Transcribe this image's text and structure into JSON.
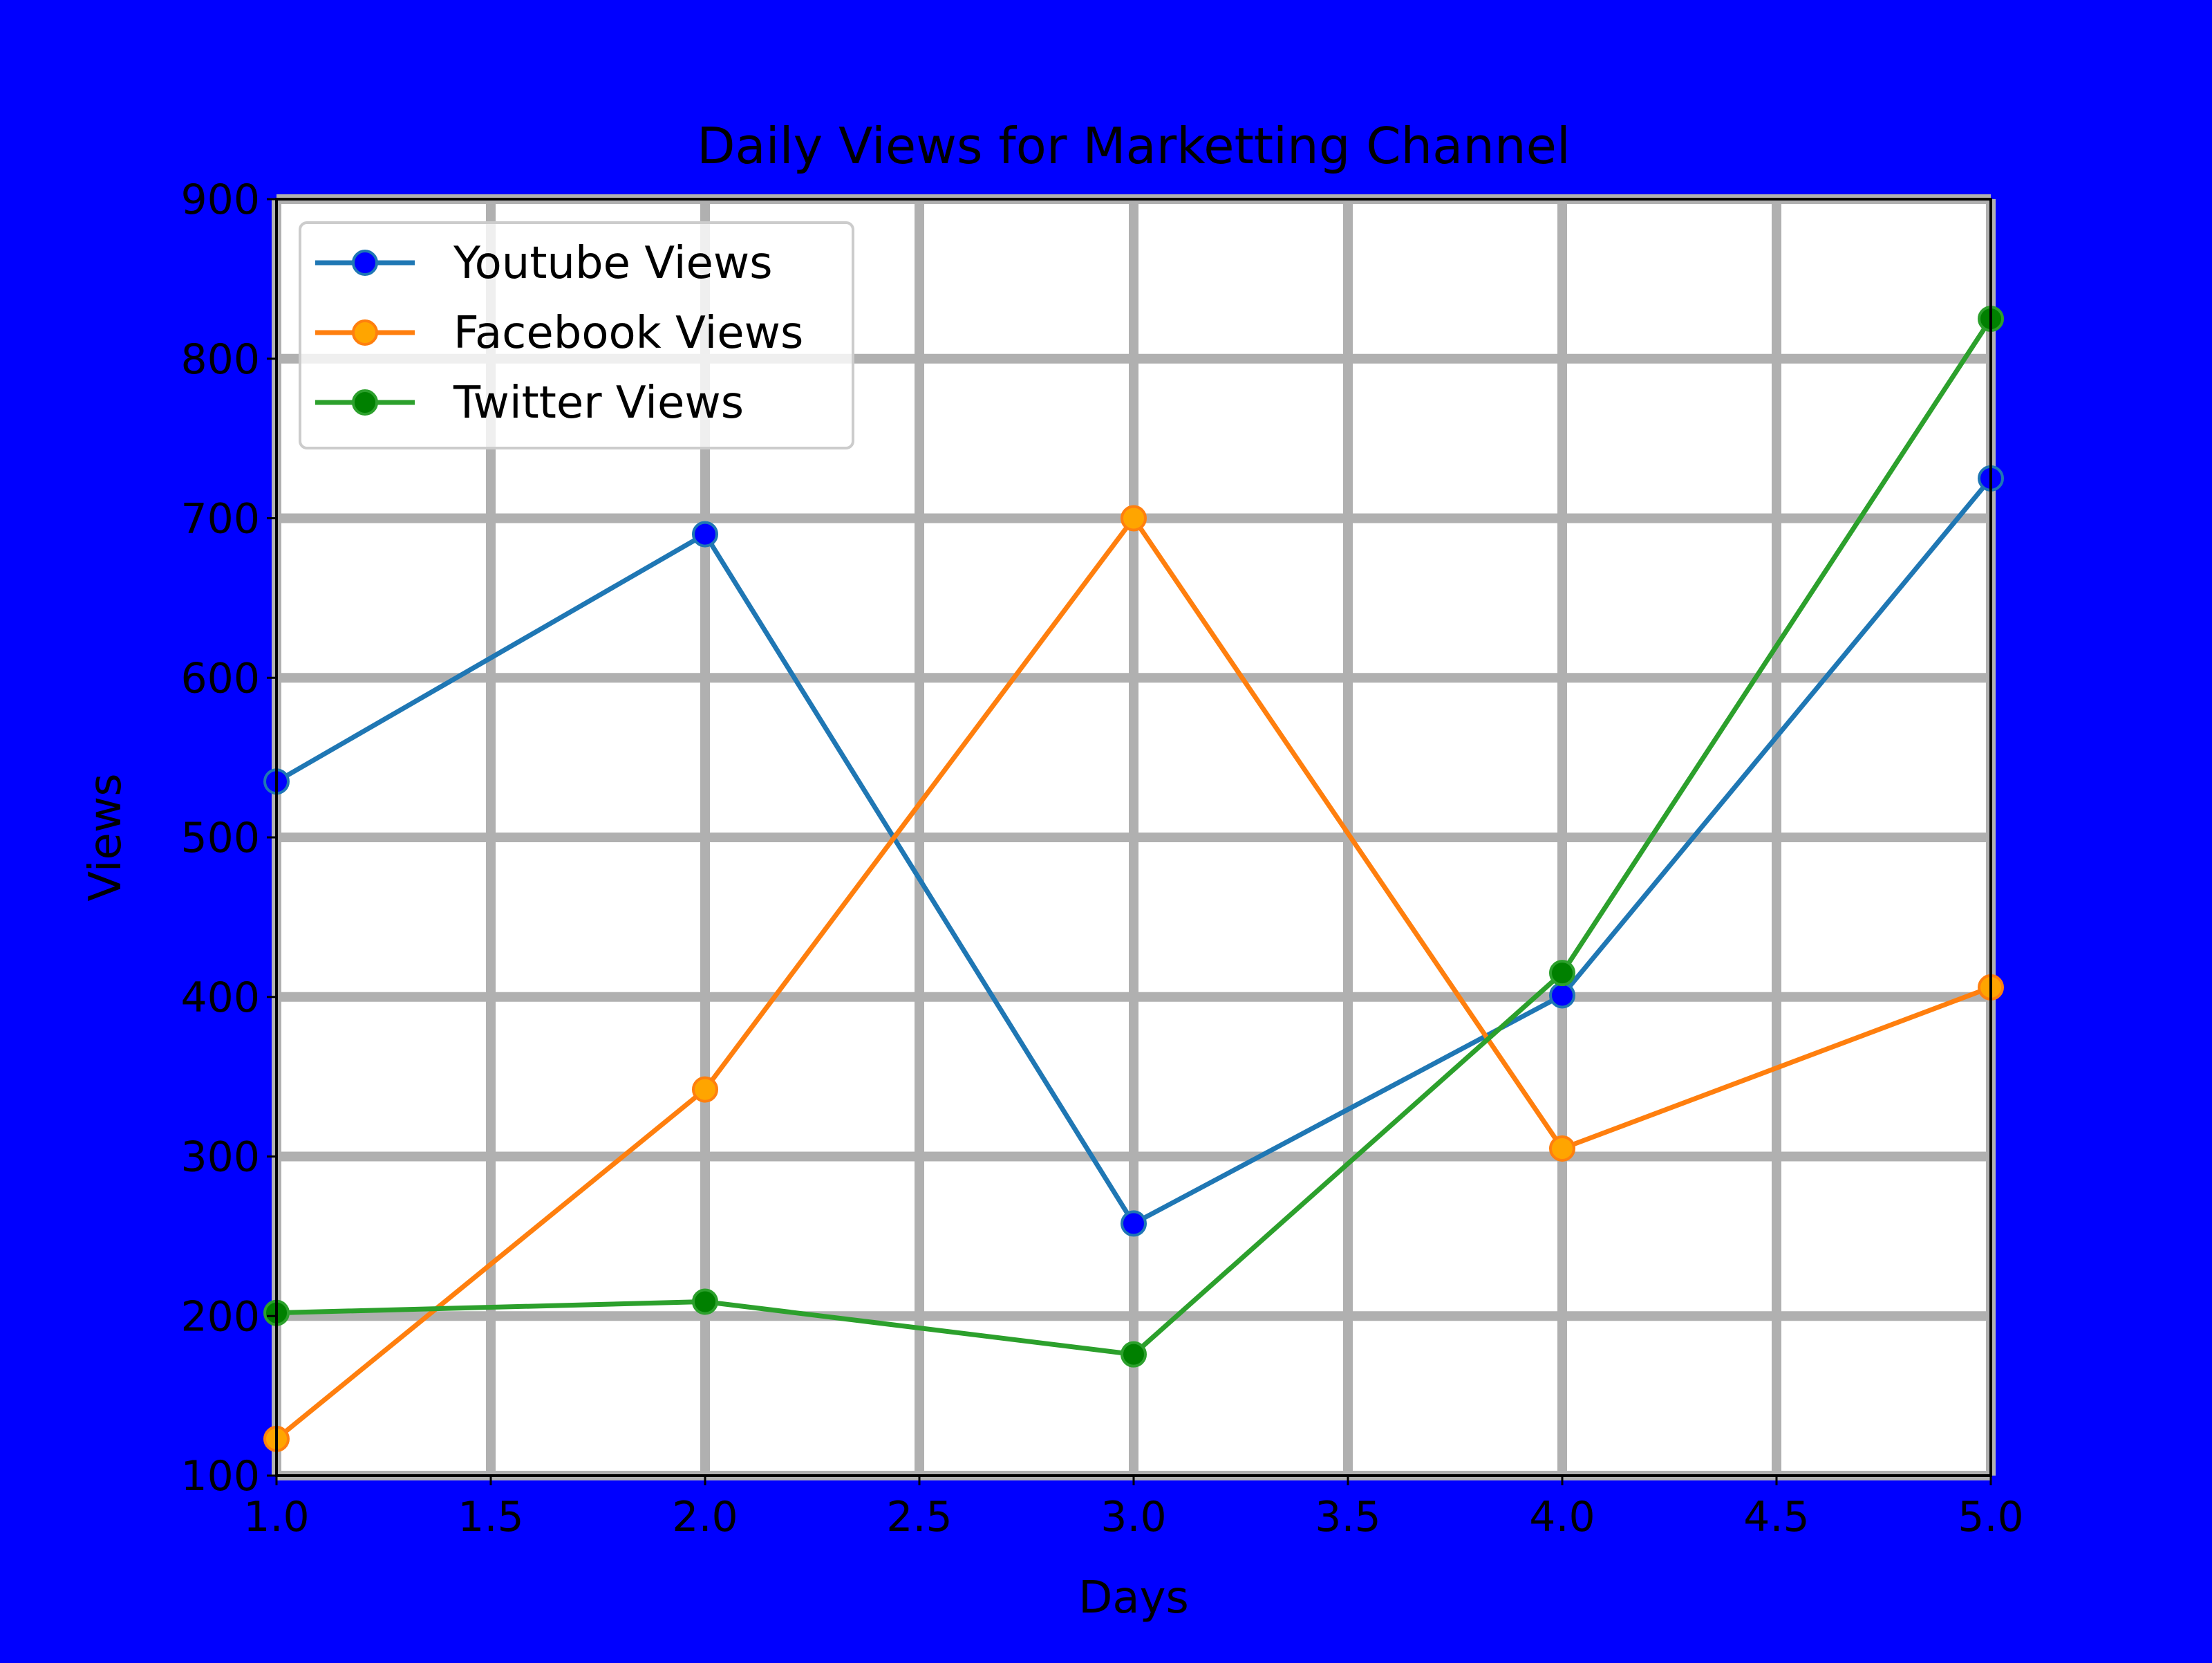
{
  "chart_data": {
    "type": "line",
    "title": "Daily Views for Marketting Channel",
    "xlabel": "Days",
    "ylabel": "Views",
    "xlim": [
      1.0,
      5.0
    ],
    "ylim": [
      100,
      900
    ],
    "xticks": [
      "1.0",
      "1.5",
      "2.0",
      "2.5",
      "3.0",
      "3.5",
      "4.0",
      "4.5",
      "5.0"
    ],
    "yticks": [
      "100",
      "200",
      "300",
      "400",
      "500",
      "600",
      "700",
      "800",
      "900"
    ],
    "grid": true,
    "legend_position": "top-left",
    "x": [
      1,
      2,
      3,
      4,
      5
    ],
    "series": [
      {
        "name": "Youtube Views",
        "values": [
          535,
          690,
          258,
          401,
          725
        ],
        "line_color": "#1f77b4",
        "marker_color": "#0000ff"
      },
      {
        "name": "Facebook Views",
        "values": [
          123,
          342,
          700,
          305,
          406
        ],
        "line_color": "#ff7f0e",
        "marker_color": "#ffa500"
      },
      {
        "name": "Twitter Views",
        "values": [
          202,
          209,
          176,
          415,
          825
        ],
        "line_color": "#2ca02c",
        "marker_color": "#008000"
      }
    ]
  },
  "colors": {
    "figure_background": "#0000ff",
    "plot_background": "#ffffff",
    "grid": "#b0b0b0"
  }
}
